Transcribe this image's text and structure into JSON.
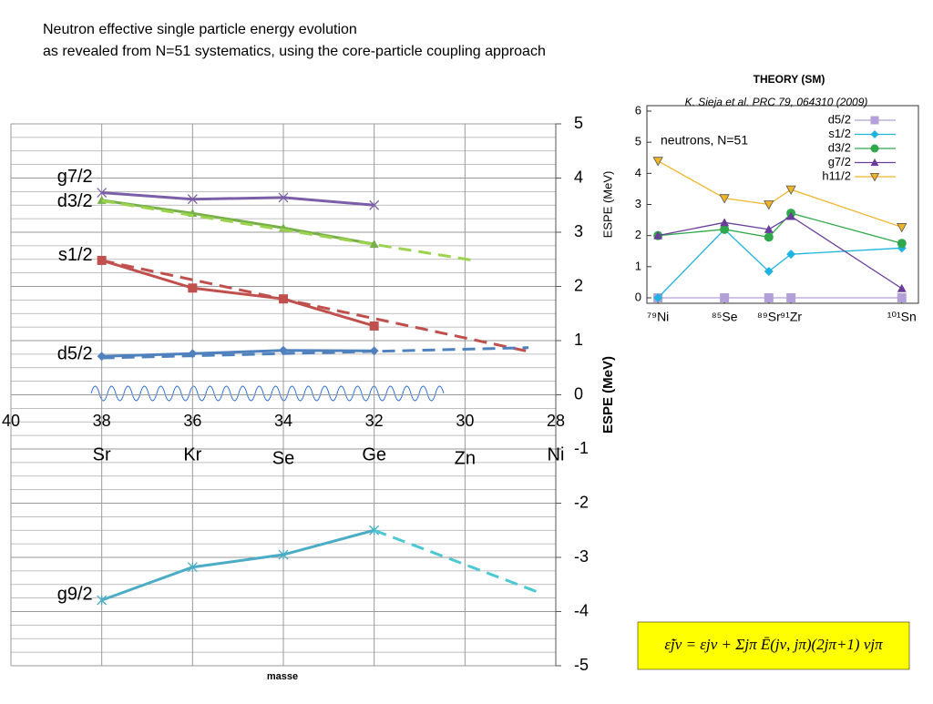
{
  "title_lines": [
    "Neutron effective single particle energy evolution",
    "as revealed from N=51 systematics, using the core-particle coupling approach"
  ],
  "formula": "ε̃jν = εjν + Σjπ Ē(jν, jπ)(2jπ+1) vjπ",
  "chart_data": [
    {
      "type": "line",
      "y_label": "ESPE (MeV)",
      "x_label": "masse",
      "xlim": [
        40,
        28
      ],
      "xticks": [
        40,
        38,
        36,
        34,
        32,
        30,
        28
      ],
      "ylim": [
        -5,
        5
      ],
      "yticks": [
        -5,
        -4,
        -3,
        -2,
        -1,
        0,
        1,
        2,
        3,
        4,
        5
      ],
      "yminor": 4,
      "grid": true,
      "elements": [
        {
          "label": "Sr",
          "x": 38
        },
        {
          "label": "Kr",
          "x": 36
        },
        {
          "label": "Se",
          "x": 34
        },
        {
          "label": "Ge",
          "x": 32
        },
        {
          "label": "Zn",
          "x": 30
        },
        {
          "label": "Ni",
          "x": 28
        }
      ],
      "series": [
        {
          "name": "g7/2",
          "color": "#7b5ea7",
          "marker": "x",
          "x": [
            38,
            36,
            34,
            32
          ],
          "values": [
            3.73,
            3.61,
            3.64,
            3.5
          ]
        },
        {
          "name": "d3/2",
          "color": "#77b048",
          "marker": "triangle",
          "x": [
            38,
            36,
            34,
            32
          ],
          "values": [
            3.59,
            3.35,
            3.08,
            2.78
          ]
        },
        {
          "color": "#9bd34f",
          "dashed": true,
          "x": [
            38,
            29.8
          ],
          "values": [
            3.58,
            2.48
          ]
        },
        {
          "name": "s1/2",
          "color": "#c0504d",
          "marker": "square",
          "x": [
            38,
            36,
            34,
            32
          ],
          "values": [
            2.48,
            1.97,
            1.77,
            1.27
          ]
        },
        {
          "color": "#c0504d",
          "dashed": true,
          "x": [
            38,
            28.6
          ],
          "values": [
            2.48,
            0.8
          ]
        },
        {
          "name": "d5/2",
          "color": "#4f81bd",
          "marker": "diamond",
          "x": [
            38,
            36,
            34,
            32
          ],
          "values": [
            0.71,
            0.76,
            0.82,
            0.81
          ]
        },
        {
          "color": "#4f81bd",
          "dashed": true,
          "x": [
            38,
            28.6
          ],
          "values": [
            0.68,
            0.87
          ]
        },
        {
          "name": "g9/2",
          "color": "#4bacc6",
          "marker": "asterisk",
          "x": [
            38,
            36,
            34,
            32
          ],
          "values": [
            -3.79,
            -3.18,
            -2.95,
            -2.5
          ]
        },
        {
          "color": "#4bc8d4",
          "dashed": true,
          "x": [
            32,
            28.3
          ],
          "values": [
            -2.5,
            -3.67
          ]
        }
      ]
    },
    {
      "type": "line",
      "title": "THEORY (SM)",
      "subtitle": "K. Sieja et al. PRC 79, 064310 (2009)",
      "annotation": "neutrons, N=51",
      "y_label": "ESPE (MeV)",
      "xlim": [
        78,
        102.5
      ],
      "xticks": [
        {
          "value": 79,
          "label": "⁷⁹Ni"
        },
        {
          "value": 85,
          "label": "⁸⁵Se"
        },
        {
          "value": 89,
          "label": "⁸⁹Sr"
        },
        {
          "value": 91,
          "label": "⁹¹Zr"
        },
        {
          "value": 101,
          "label": "¹⁰¹Sn"
        }
      ],
      "ylim": [
        0,
        6
      ],
      "yticks": [
        0,
        1,
        2,
        3,
        4,
        5,
        6
      ],
      "legend": "upper right",
      "series": [
        {
          "name": "d5/2",
          "color": "#b4a0d8",
          "marker": "square",
          "x": [
            79,
            85,
            89,
            91,
            101
          ],
          "values": [
            0,
            0,
            0,
            0,
            0
          ]
        },
        {
          "name": "s1/2",
          "color": "#1fb3e0",
          "marker": "diamond",
          "x": [
            79,
            85,
            89,
            91,
            101
          ],
          "values": [
            0,
            2.2,
            0.85,
            1.4,
            1.6
          ]
        },
        {
          "name": "d3/2",
          "color": "#2ea84a",
          "marker": "circle",
          "x": [
            79,
            85,
            89,
            91,
            101
          ],
          "values": [
            2.0,
            2.2,
            1.95,
            2.72,
            1.75
          ]
        },
        {
          "name": "g7/2",
          "color": "#6a3d9a",
          "marker": "triangle",
          "x": [
            79,
            85,
            89,
            91,
            101
          ],
          "values": [
            2.0,
            2.42,
            2.2,
            2.62,
            0.3
          ]
        },
        {
          "name": "h11/2",
          "color": "#f0b429",
          "marker": "down-triangle",
          "x": [
            79,
            85,
            89,
            91,
            101
          ],
          "values": [
            4.4,
            3.2,
            3.0,
            3.48,
            2.27
          ]
        }
      ]
    }
  ]
}
